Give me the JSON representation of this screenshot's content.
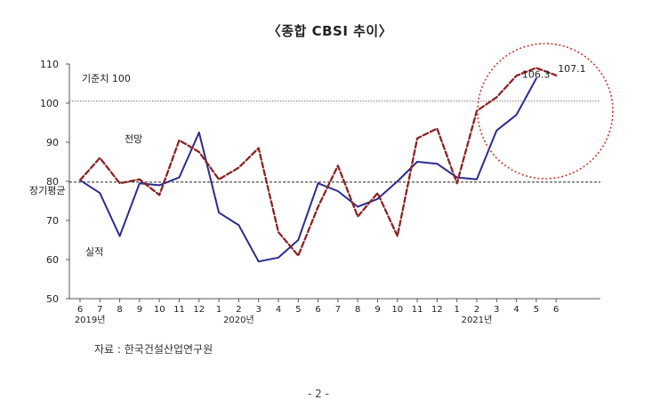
{
  "chart_data": {
    "type": "line",
    "title": "〈종합 CBSI 추이〉",
    "xlabel": "",
    "ylabel": "",
    "ylim": [
      50,
      110
    ],
    "yticks": [
      50,
      60,
      70,
      80,
      90,
      100,
      110
    ],
    "categories": [
      "6",
      "7",
      "8",
      "9",
      "10",
      "11",
      "12",
      "1",
      "2",
      "3",
      "4",
      "5",
      "6",
      "7",
      "8",
      "9",
      "10",
      "11",
      "12",
      "1",
      "2",
      "3",
      "4",
      "5",
      "6"
    ],
    "year_labels": [
      {
        "label": "2019년",
        "index": 0.5
      },
      {
        "label": "2020년",
        "index": 8
      },
      {
        "label": "2021년",
        "index": 20
      }
    ],
    "series": [
      {
        "name": "실적",
        "style": "solid",
        "color": "#2b2b8f",
        "values": [
          80.3,
          77,
          66,
          79.5,
          79,
          81,
          92.5,
          72,
          68.8,
          59.5,
          60.5,
          65,
          79.5,
          77.5,
          73.5,
          75.5,
          80,
          85,
          84.5,
          81,
          80.5,
          93,
          97,
          106.3,
          null
        ]
      },
      {
        "name": "전망",
        "style": "dashed",
        "color": "#8b2323",
        "values": [
          80.3,
          86,
          79.5,
          80.5,
          76.5,
          90.5,
          87.5,
          80.5,
          83.5,
          88.5,
          67,
          61,
          73.5,
          84,
          71,
          77,
          66,
          91,
          93.5,
          79.5,
          98,
          101.5,
          107,
          109,
          107.1
        ]
      }
    ],
    "reference_lines": [
      {
        "label": "기준치 100",
        "value": 100.5,
        "style": "dotted"
      },
      {
        "label": "장기평균",
        "value": 79.8,
        "style": "dashed"
      }
    ],
    "annotations": [
      {
        "text": "106.3",
        "series": "실적",
        "index": 23
      },
      {
        "text": "107.1",
        "series": "전망",
        "index": 24
      },
      {
        "text": "전망",
        "near": "전망"
      },
      {
        "text": "실적",
        "near": "실적"
      }
    ],
    "highlight": {
      "shape": "dotted-circle",
      "color": "#c0392b"
    },
    "grid": false
  },
  "source_note": "자료 : 한국건설산업연구원",
  "page_number": "- 2 -"
}
